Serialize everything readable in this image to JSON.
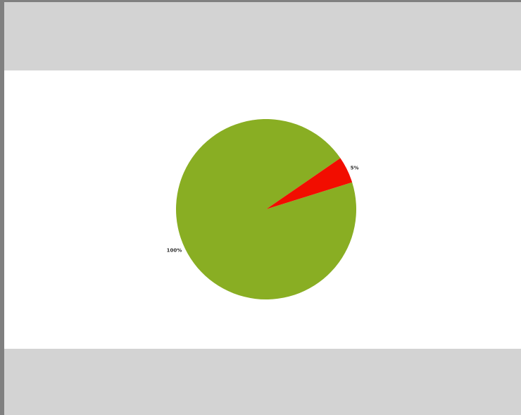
{
  "chart_data": {
    "type": "pie",
    "values": [
      100,
      5
    ],
    "value_labels": [
      "100%",
      "5%"
    ],
    "colors": [
      "#89ae23",
      "#f20d00"
    ]
  }
}
